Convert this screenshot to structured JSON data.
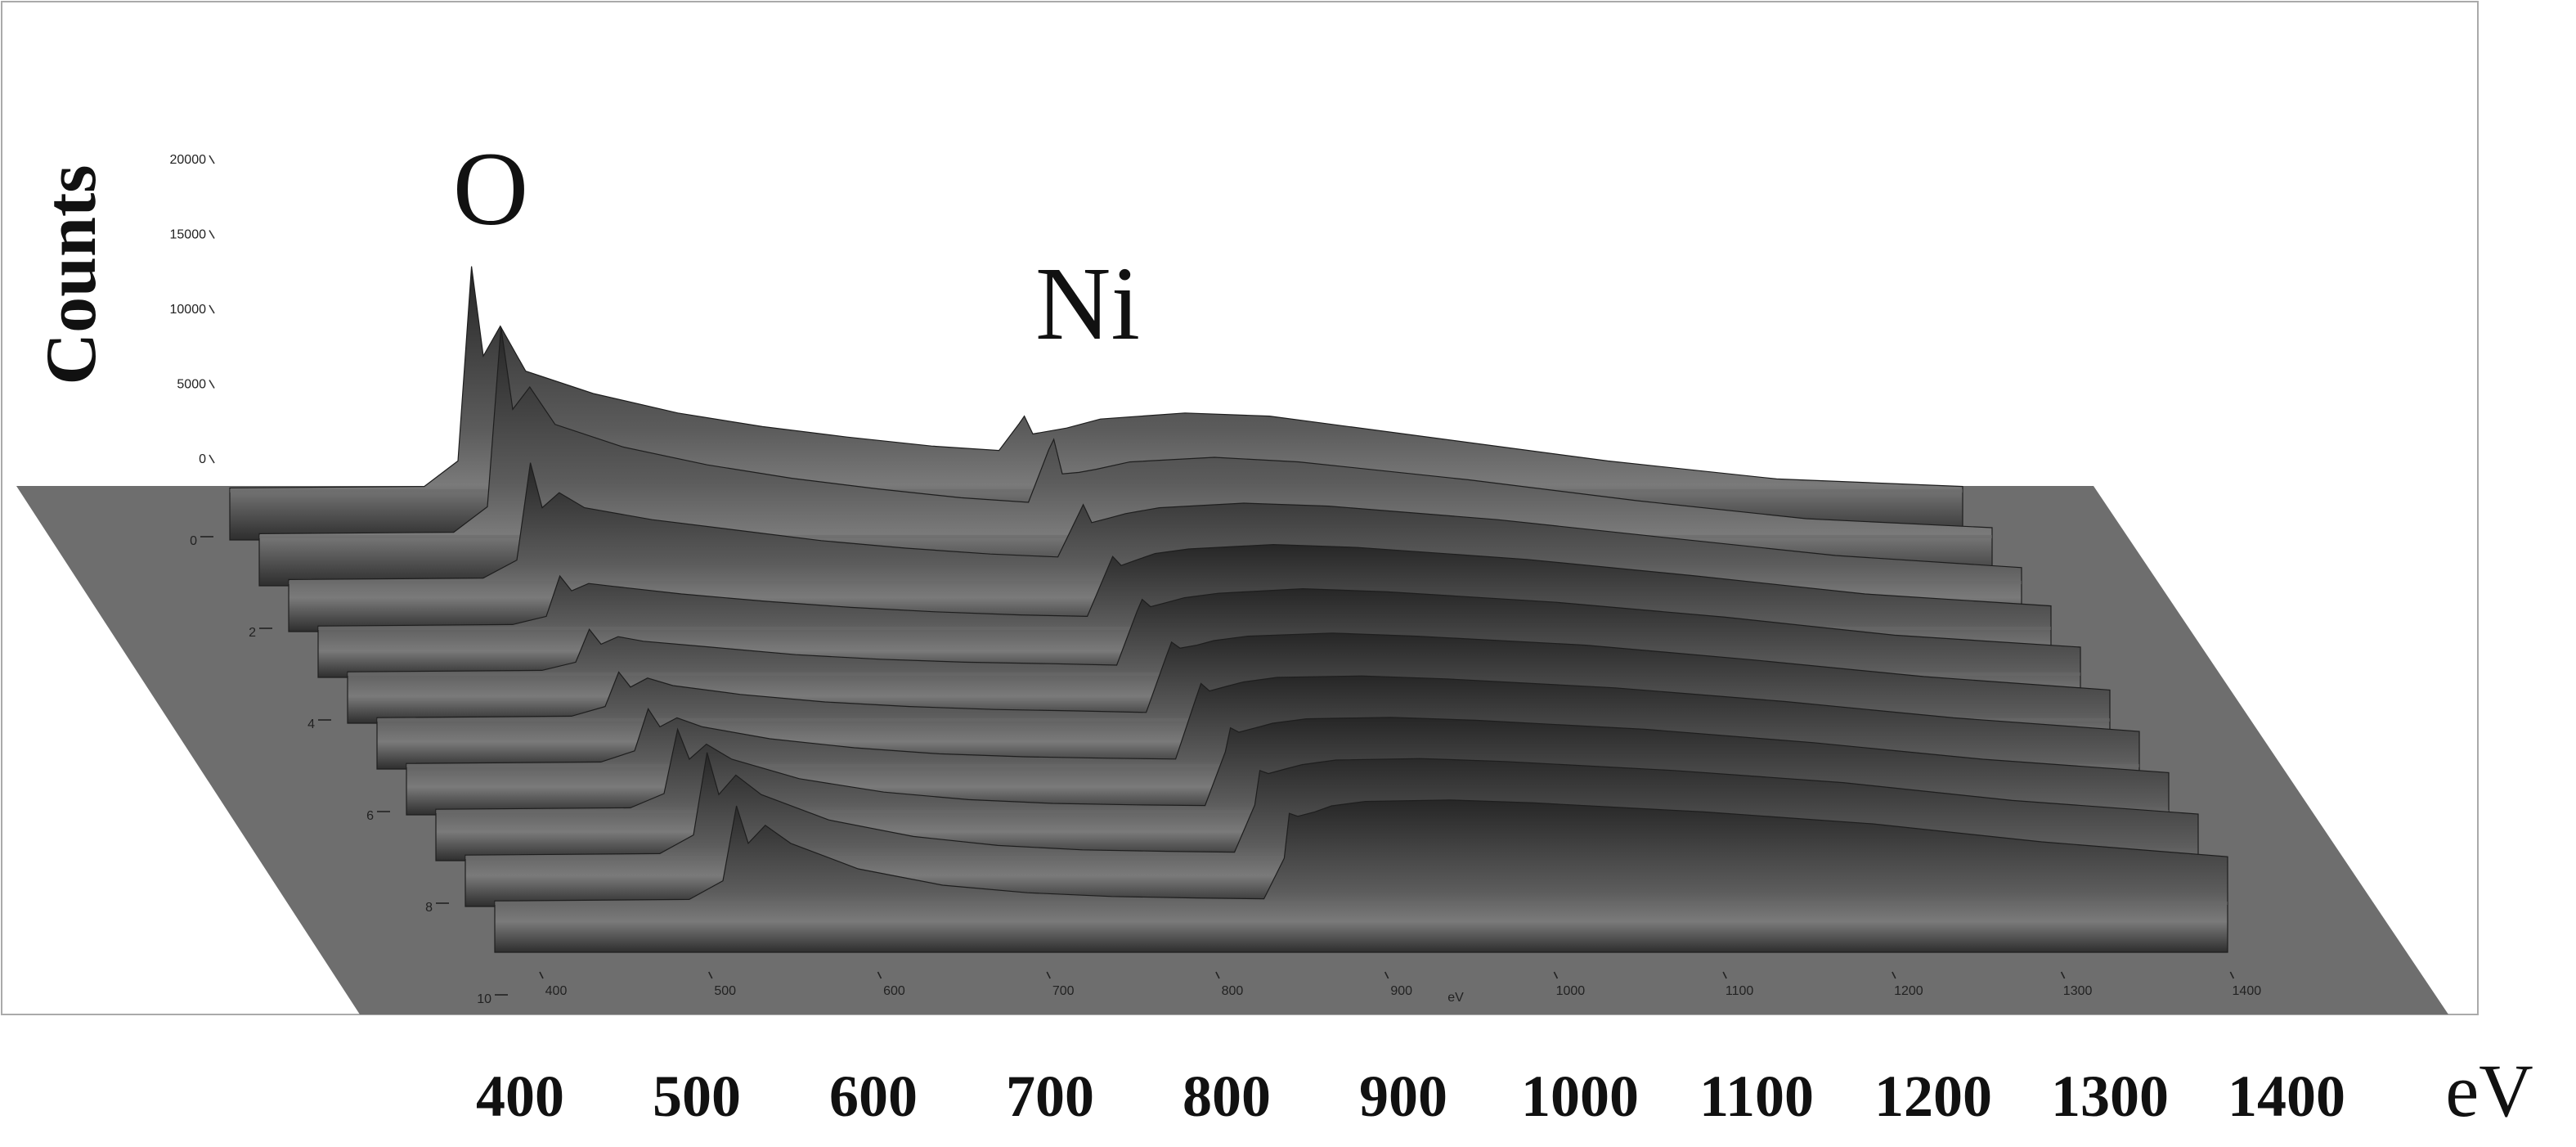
{
  "chart_data": {
    "type": "waterfall3d",
    "x": [
      385,
      500,
      520,
      528,
      535,
      545,
      560,
      600,
      650,
      700,
      750,
      800,
      840,
      852,
      855,
      860,
      870,
      880,
      900,
      950,
      1000,
      1100,
      1200,
      1300,
      1410
    ],
    "series": [
      {
        "values": [
          200,
          300,
          2000,
          15000,
          9000,
          11000,
          8000,
          6500,
          5200,
          4300,
          3600,
          3000,
          2700,
          4500,
          5000,
          3800,
          4000,
          4200,
          4800,
          5200,
          5000,
          3500,
          2000,
          800,
          300
        ]
      },
      {
        "values": [
          200,
          300,
          2000,
          14000,
          8500,
          10000,
          7500,
          6000,
          4800,
          3900,
          3200,
          2600,
          2300,
          5800,
          6500,
          4200,
          4300,
          4500,
          5000,
          5300,
          5000,
          3800,
          2400,
          1200,
          600
        ]
      },
      {
        "values": [
          200,
          300,
          1500,
          8000,
          5000,
          6000,
          5000,
          4200,
          3500,
          2800,
          2300,
          1900,
          1700,
          4500,
          5200,
          4000,
          4300,
          4600,
          5000,
          5300,
          5100,
          4200,
          3000,
          1800,
          1000
        ]
      },
      {
        "values": [
          150,
          250,
          800,
          3500,
          2500,
          3000,
          2800,
          2300,
          1800,
          1400,
          1100,
          900,
          800,
          4000,
          4800,
          4200,
          4600,
          5000,
          5300,
          5600,
          5400,
          4600,
          3500,
          2300,
          1500
        ]
      },
      {
        "values": [
          150,
          250,
          800,
          3000,
          2000,
          2500,
          2200,
          1800,
          1300,
          1000,
          800,
          700,
          600,
          4200,
          5000,
          4500,
          4800,
          5100,
          5400,
          5700,
          5500,
          4800,
          3800,
          2600,
          1800
        ]
      },
      {
        "values": [
          150,
          250,
          900,
          3200,
          2200,
          2800,
          2300,
          1700,
          1200,
          900,
          700,
          600,
          500,
          4300,
          5200,
          4800,
          5000,
          5300,
          5600,
          5800,
          5600,
          5000,
          4000,
          2900,
          2000
        ]
      },
      {
        "values": [
          150,
          250,
          1000,
          3800,
          2600,
          3200,
          2600,
          1800,
          1200,
          800,
          600,
          500,
          450,
          4500,
          5500,
          5000,
          5300,
          5600,
          5900,
          6000,
          5800,
          5200,
          4300,
          3200,
          2300
        ]
      },
      {
        "values": [
          150,
          250,
          1200,
          5500,
          3500,
          4500,
          3500,
          2200,
          1300,
          800,
          550,
          450,
          400,
          4000,
          5600,
          5300,
          5600,
          5900,
          6200,
          6300,
          6100,
          5500,
          4600,
          3500,
          2600
        ]
      },
      {
        "values": [
          150,
          250,
          1500,
          7000,
          4200,
          5500,
          4200,
          2500,
          1400,
          800,
          500,
          400,
          350,
          3500,
          5800,
          5600,
          5900,
          6200,
          6500,
          6600,
          6400,
          5800,
          5000,
          3800,
          2900
        ]
      },
      {
        "values": [
          150,
          250,
          1500,
          6500,
          4000,
          5200,
          4000,
          2300,
          1200,
          700,
          450,
          350,
          300,
          3000,
          6000,
          5800,
          6100,
          6500,
          6800,
          6900,
          6700,
          6100,
          5300,
          4100,
          3100
        ]
      }
    ],
    "color": "#6a6a6a",
    "floor_color": "#6e6e6e",
    "xlim": [
      385,
      1410
    ],
    "xticks": [
      400,
      500,
      600,
      700,
      800,
      900,
      1000,
      1100,
      1200,
      1300,
      1400
    ],
    "x_label": "eV",
    "zlim": [
      0,
      20000
    ],
    "zticks": [
      0,
      5000,
      10000,
      15000,
      20000
    ],
    "z_label": "Counts",
    "ylim": [
      0,
      10
    ],
    "yticks": [
      0,
      2,
      4,
      6,
      8,
      10
    ],
    "annotations": [
      "O",
      "Ni"
    ]
  }
}
